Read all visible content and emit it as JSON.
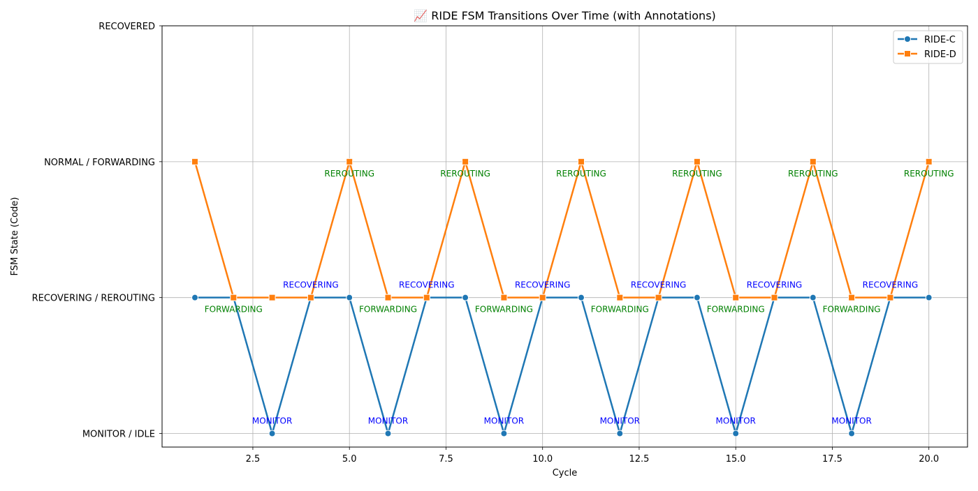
{
  "chart_data": {
    "type": "line",
    "title": "📈 RIDE FSM Transitions Over Time (with Annotations)",
    "xlabel": "Cycle",
    "ylabel": "FSM State (Code)",
    "xlim": [
      0.15,
      21.0
    ],
    "ylim": [
      -0.1,
      3.0
    ],
    "x_ticks": [
      2.5,
      5.0,
      7.5,
      10.0,
      12.5,
      15.0,
      17.5,
      20.0
    ],
    "x_tick_labels": [
      "2.5",
      "5.0",
      "7.5",
      "10.0",
      "12.5",
      "15.0",
      "17.5",
      "20.0"
    ],
    "y_ticks": [
      0,
      1,
      2,
      3
    ],
    "y_tick_labels": [
      "MONITOR / IDLE",
      "RECOVERING / REROUTING",
      "NORMAL / FORWARDING",
      "RECOVERED"
    ],
    "grid": true,
    "legend_position": "top-right",
    "x": [
      1,
      2,
      3,
      4,
      5,
      6,
      7,
      8,
      9,
      10,
      11,
      12,
      13,
      14,
      15,
      16,
      17,
      18,
      19,
      20
    ],
    "series": [
      {
        "name": "RIDE-C",
        "marker": "circle",
        "color": "#1f77b4",
        "values": [
          1,
          1,
          0,
          1,
          1,
          0,
          1,
          1,
          0,
          1,
          1,
          0,
          1,
          1,
          0,
          1,
          1,
          0,
          1,
          1
        ]
      },
      {
        "name": "RIDE-D",
        "marker": "square",
        "color": "#ff7f0e",
        "values": [
          2,
          1,
          1,
          1,
          2,
          1,
          1,
          2,
          1,
          1,
          2,
          1,
          1,
          2,
          1,
          1,
          2,
          1,
          1,
          2
        ]
      }
    ],
    "annotations": [
      {
        "text": "MONITOR",
        "x": 3,
        "y": 0,
        "color": "#0000ff",
        "position": "above"
      },
      {
        "text": "MONITOR",
        "x": 6,
        "y": 0,
        "color": "#0000ff",
        "position": "above"
      },
      {
        "text": "MONITOR",
        "x": 9,
        "y": 0,
        "color": "#0000ff",
        "position": "above"
      },
      {
        "text": "MONITOR",
        "x": 12,
        "y": 0,
        "color": "#0000ff",
        "position": "above"
      },
      {
        "text": "MONITOR",
        "x": 15,
        "y": 0,
        "color": "#0000ff",
        "position": "above"
      },
      {
        "text": "MONITOR",
        "x": 18,
        "y": 0,
        "color": "#0000ff",
        "position": "above"
      },
      {
        "text": "RECOVERING",
        "x": 4,
        "y": 1,
        "color": "#0000ff",
        "position": "above"
      },
      {
        "text": "RECOVERING",
        "x": 7,
        "y": 1,
        "color": "#0000ff",
        "position": "above"
      },
      {
        "text": "RECOVERING",
        "x": 10,
        "y": 1,
        "color": "#0000ff",
        "position": "above"
      },
      {
        "text": "RECOVERING",
        "x": 13,
        "y": 1,
        "color": "#0000ff",
        "position": "above"
      },
      {
        "text": "RECOVERING",
        "x": 16,
        "y": 1,
        "color": "#0000ff",
        "position": "above"
      },
      {
        "text": "RECOVERING",
        "x": 19,
        "y": 1,
        "color": "#0000ff",
        "position": "above"
      },
      {
        "text": "FORWARDING",
        "x": 2,
        "y": 1,
        "color": "#008000",
        "position": "below"
      },
      {
        "text": "FORWARDING",
        "x": 6,
        "y": 1,
        "color": "#008000",
        "position": "below"
      },
      {
        "text": "FORWARDING",
        "x": 9,
        "y": 1,
        "color": "#008000",
        "position": "below"
      },
      {
        "text": "FORWARDING",
        "x": 12,
        "y": 1,
        "color": "#008000",
        "position": "below"
      },
      {
        "text": "FORWARDING",
        "x": 15,
        "y": 1,
        "color": "#008000",
        "position": "below"
      },
      {
        "text": "FORWARDING",
        "x": 18,
        "y": 1,
        "color": "#008000",
        "position": "below"
      },
      {
        "text": "REROUTING",
        "x": 5,
        "y": 2,
        "color": "#008000",
        "position": "below"
      },
      {
        "text": "REROUTING",
        "x": 8,
        "y": 2,
        "color": "#008000",
        "position": "below"
      },
      {
        "text": "REROUTING",
        "x": 11,
        "y": 2,
        "color": "#008000",
        "position": "below"
      },
      {
        "text": "REROUTING",
        "x": 14,
        "y": 2,
        "color": "#008000",
        "position": "below"
      },
      {
        "text": "REROUTING",
        "x": 17,
        "y": 2,
        "color": "#008000",
        "position": "below"
      },
      {
        "text": "REROUTING",
        "x": 20,
        "y": 2,
        "color": "#008000",
        "position": "below"
      }
    ]
  }
}
